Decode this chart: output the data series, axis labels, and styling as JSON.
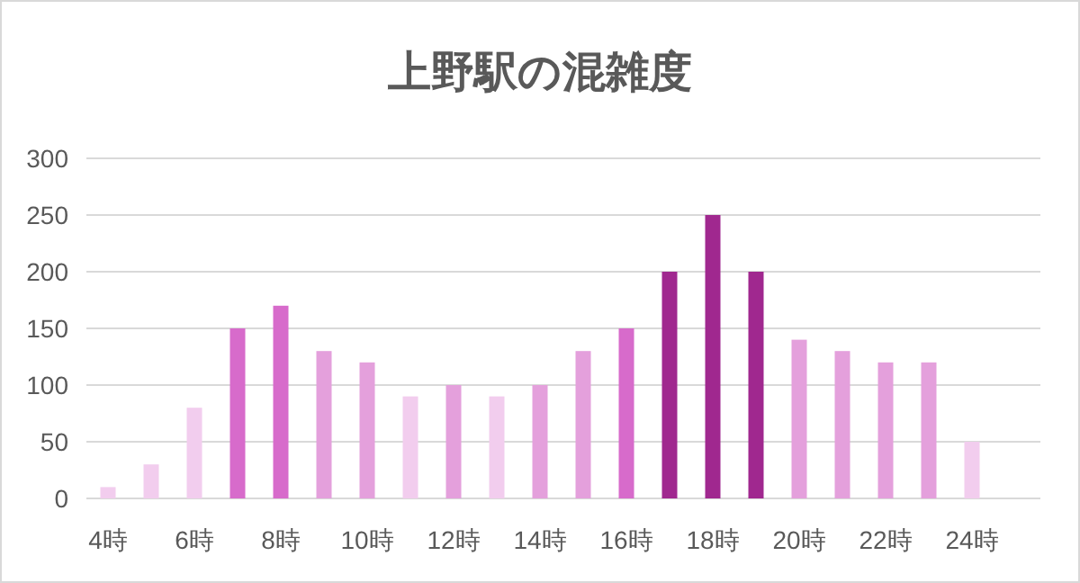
{
  "chart_data": {
    "type": "bar",
    "title": "上野駅の混雑度",
    "categories": [
      "4時",
      null,
      "6時",
      null,
      "8時",
      null,
      "10時",
      null,
      "12時",
      null,
      "14時",
      null,
      "16時",
      null,
      "18時",
      null,
      "20時",
      null,
      "22時",
      null,
      "24時"
    ],
    "values": [
      10,
      30,
      80,
      150,
      170,
      130,
      120,
      90,
      100,
      90,
      100,
      130,
      150,
      200,
      250,
      200,
      140,
      130,
      120,
      120,
      50
    ],
    "colors": [
      "#f2cdee",
      "#f2cdee",
      "#f2cdee",
      "#d76bcb",
      "#d76bcb",
      "#e4a0dc",
      "#e4a0dc",
      "#f2cdee",
      "#e4a0dc",
      "#f2cdee",
      "#e4a0dc",
      "#e4a0dc",
      "#d76bcb",
      "#a0288f",
      "#a0288f",
      "#a0288f",
      "#e4a0dc",
      "#e4a0dc",
      "#e4a0dc",
      "#e4a0dc",
      "#f2cdee"
    ],
    "ylim": [
      0,
      300
    ],
    "yticks": [
      0,
      50,
      100,
      150,
      200,
      250,
      300
    ],
    "grid": "y"
  }
}
